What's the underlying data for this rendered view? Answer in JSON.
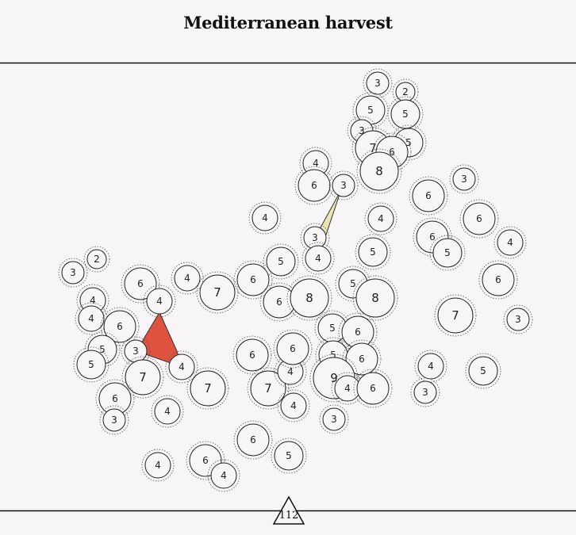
{
  "title": "Mediterranean harvest",
  "page_number": "112",
  "colors": {
    "background": "#f7f5f5",
    "line": "#111111",
    "shape_red": "#e05240",
    "shape_cream": "#ede3b4"
  },
  "dots": [
    {
      "n": "3"
    },
    {
      "n": "2"
    },
    {
      "n": "5"
    },
    {
      "n": "5"
    },
    {
      "n": "3"
    },
    {
      "n": "5"
    },
    {
      "n": "7"
    },
    {
      "n": "6"
    },
    {
      "n": "8"
    },
    {
      "n": "4"
    },
    {
      "n": "6"
    },
    {
      "n": "3"
    },
    {
      "n": "3"
    },
    {
      "n": "6"
    },
    {
      "n": "6"
    },
    {
      "n": "4"
    },
    {
      "n": "4"
    },
    {
      "n": "3"
    },
    {
      "n": "4"
    },
    {
      "n": "6"
    },
    {
      "n": "5"
    },
    {
      "n": "5"
    },
    {
      "n": "4"
    },
    {
      "n": "2"
    },
    {
      "n": "3"
    },
    {
      "n": "6"
    },
    {
      "n": "4"
    },
    {
      "n": "4"
    },
    {
      "n": "7"
    },
    {
      "n": "6"
    },
    {
      "n": "5"
    },
    {
      "n": "6"
    },
    {
      "n": "8"
    },
    {
      "n": "5"
    },
    {
      "n": "8"
    },
    {
      "n": "6"
    },
    {
      "n": "4"
    },
    {
      "n": "4"
    },
    {
      "n": "6"
    },
    {
      "n": "7"
    },
    {
      "n": "3"
    },
    {
      "n": "5"
    },
    {
      "n": "6"
    },
    {
      "n": "5"
    },
    {
      "n": "5"
    },
    {
      "n": "3"
    },
    {
      "n": "4"
    },
    {
      "n": "7"
    },
    {
      "n": "6"
    },
    {
      "n": "5"
    },
    {
      "n": "7"
    },
    {
      "n": "7"
    },
    {
      "n": "6"
    },
    {
      "n": "4"
    },
    {
      "n": "9"
    },
    {
      "n": "4"
    },
    {
      "n": "6"
    },
    {
      "n": "6"
    },
    {
      "n": "4"
    },
    {
      "n": "5"
    },
    {
      "n": "3"
    },
    {
      "n": "4"
    },
    {
      "n": "6"
    },
    {
      "n": "3"
    },
    {
      "n": "4"
    },
    {
      "n": "3"
    },
    {
      "n": "6"
    },
    {
      "n": "5"
    },
    {
      "n": "4"
    },
    {
      "n": "6"
    },
    {
      "n": "4"
    }
  ]
}
